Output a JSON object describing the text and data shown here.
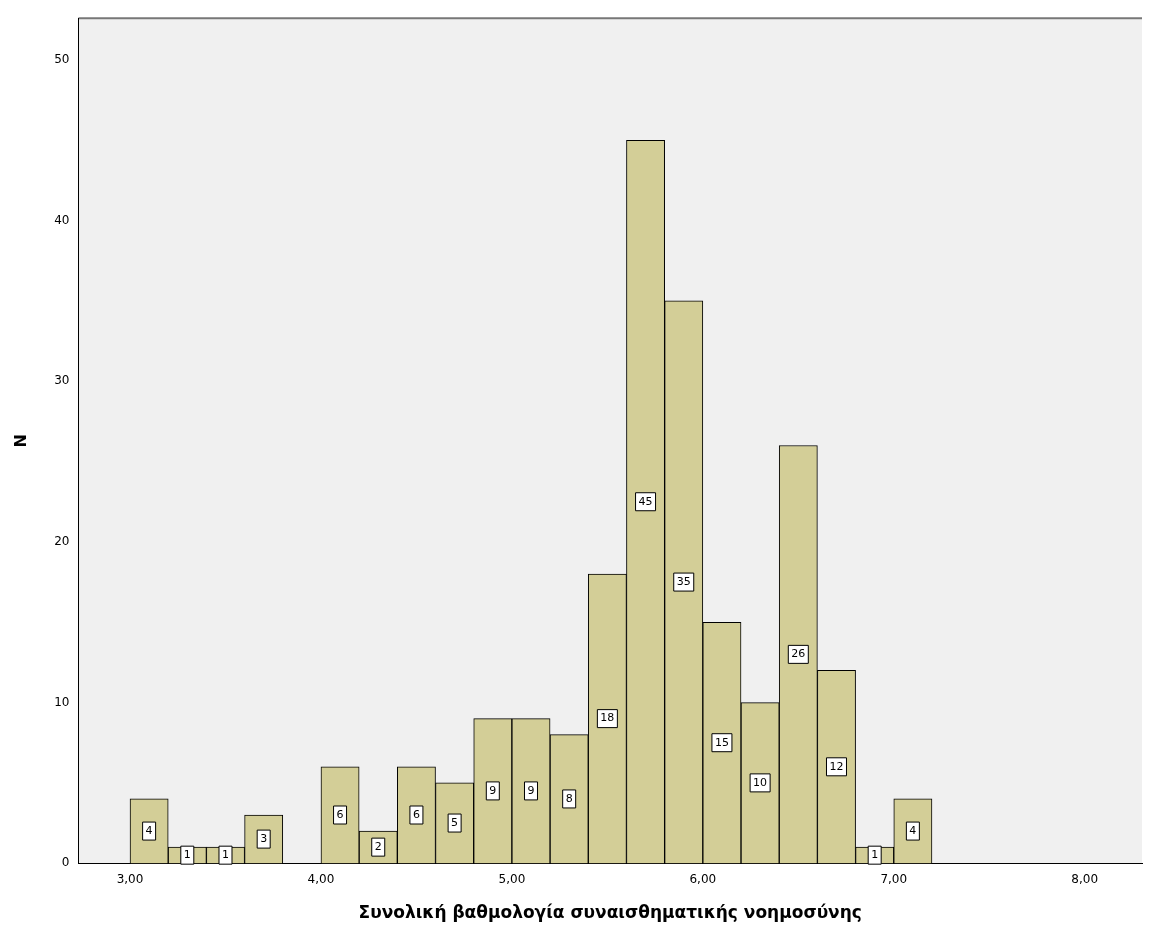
{
  "chart_data": {
    "type": "histogram",
    "xlabel": "Συνολική βαθμολογία συναισθηματικής νοημοσύνης",
    "ylabel": "N",
    "bins": [
      3.0,
      3.2,
      3.4,
      3.6,
      3.8,
      4.0,
      4.2,
      4.4,
      4.6,
      4.8,
      5.0,
      5.2,
      5.4,
      5.6,
      5.8,
      6.0,
      6.2,
      6.4,
      6.6,
      6.8,
      7.0,
      7.2
    ],
    "values": [
      4,
      1,
      1,
      3,
      0,
      6,
      2,
      6,
      5,
      9,
      9,
      8,
      18,
      45,
      35,
      15,
      10,
      26,
      12,
      1,
      4
    ],
    "value_labels": [
      "4",
      "1",
      "1",
      "3",
      null,
      "6",
      "2",
      "6",
      "5",
      "9",
      "9",
      "8",
      "18",
      "45",
      "35",
      "15",
      "10",
      "26",
      "12",
      "1",
      "4"
    ],
    "color": "#d3ce97",
    "xlim": [
      2.73,
      8.3
    ],
    "xticks": [
      {
        "value": 3,
        "label": "3,00"
      },
      {
        "value": 4,
        "label": "4,00"
      },
      {
        "value": 5,
        "label": "5,00"
      },
      {
        "value": 6,
        "label": "6,00"
      },
      {
        "value": 7,
        "label": "7,00"
      },
      {
        "value": 8,
        "label": "8,00"
      }
    ],
    "ylim": [
      0,
      52.6
    ],
    "yticks": [
      0,
      10,
      20,
      30,
      40,
      50
    ],
    "grid": false,
    "legend": false
  }
}
